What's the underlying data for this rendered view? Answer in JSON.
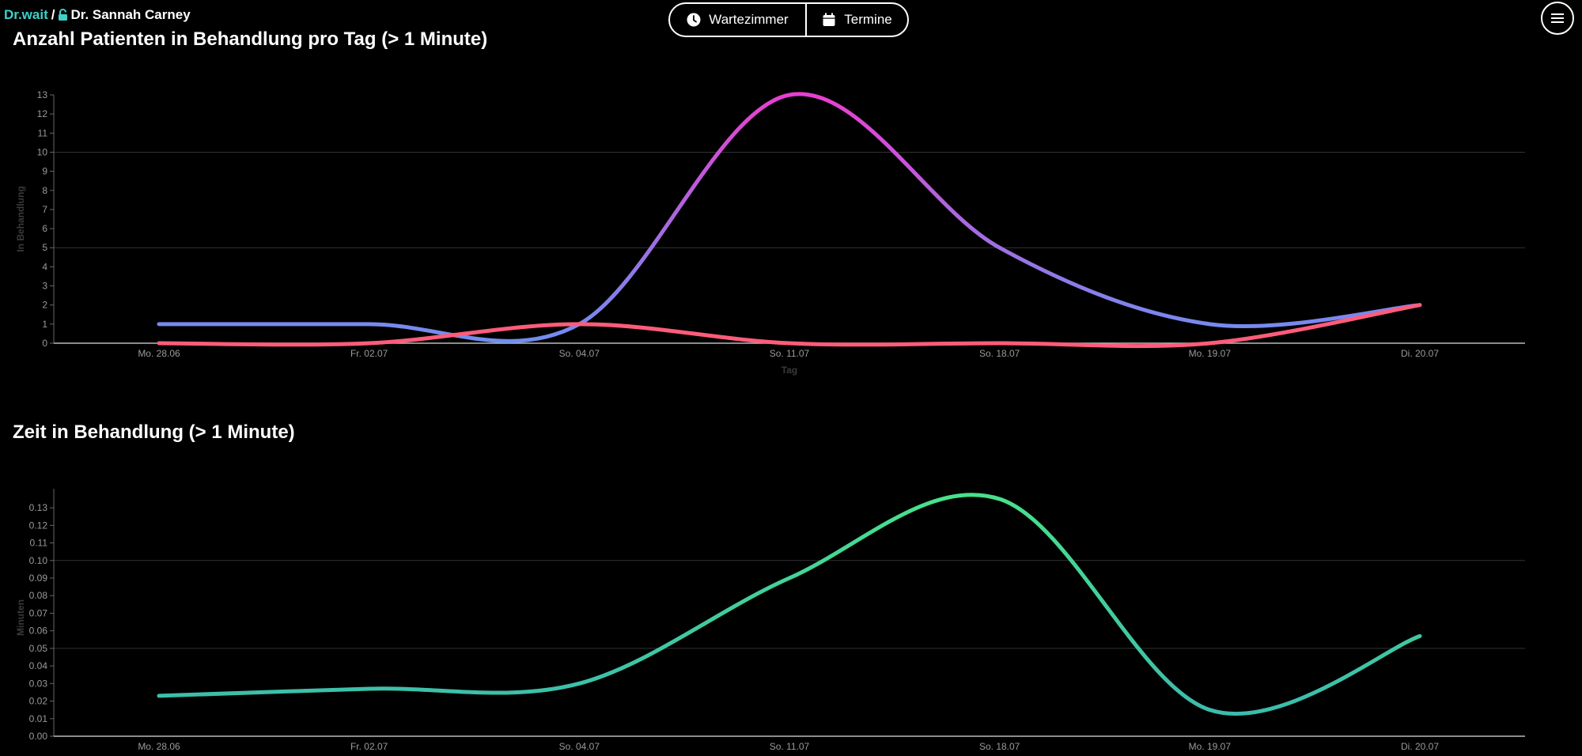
{
  "header": {
    "brand": "Dr.wait",
    "separator": "/",
    "user": "Dr. Sannah Carney",
    "lock_icon": "lock-icon",
    "nav": [
      {
        "label": "Wartezimmer",
        "icon": "clock-icon"
      },
      {
        "label": "Termine",
        "icon": "calendar-icon"
      }
    ],
    "menu_icon": "hamburger-menu-icon"
  },
  "colors": {
    "brand": "#3fd0c9",
    "chart1_line_low": "#6f8ff0",
    "chart1_line_high": "#e83fd0",
    "chart1_red": "#ff5c7a",
    "chart2_low": "#3ab8b0",
    "chart2_high": "#48e08c"
  },
  "charts": [
    {
      "title": "Anzahl Patienten in Behandlung pro Tag (> 1 Minute)",
      "chart_data": {
        "type": "line",
        "categories": [
          "Mo. 28.06",
          "Fr. 02.07",
          "So. 04.07",
          "So. 11.07",
          "So. 18.07",
          "Mo. 19.07",
          "Di. 20.07"
        ],
        "series": [
          {
            "values": [
              1,
              1,
              1,
              13,
              5,
              1,
              2
            ]
          },
          {
            "values": [
              0,
              0,
              1,
              0,
              0,
              0,
              2
            ]
          }
        ],
        "xlabel": "Tag",
        "ylabel": "In Behandlung",
        "ylim": [
          0,
          13
        ],
        "yticks": [
          "0",
          "1",
          "2",
          "3",
          "4",
          "5",
          "6",
          "7",
          "8",
          "9",
          "10",
          "11",
          "12",
          "13"
        ],
        "grid_y": [
          5,
          10
        ]
      }
    },
    {
      "title": "Zeit in Behandlung (> 1 Minute)",
      "chart_data": {
        "type": "line",
        "categories": [
          "Mo. 28.06",
          "Fr. 02.07",
          "So. 04.07",
          "So. 11.07",
          "So. 18.07",
          "Mo. 19.07",
          "Di. 20.07"
        ],
        "series": [
          {
            "values": [
              0.023,
              0.027,
              0.03,
              0.09,
              0.135,
              0.015,
              0.057
            ]
          }
        ],
        "xlabel": "",
        "ylabel": "Minuten",
        "ylim": [
          0,
          0.135
        ],
        "yticks": [
          "0.00",
          "0.01",
          "0.02",
          "0.03",
          "0.04",
          "0.05",
          "0.06",
          "0.07",
          "0.08",
          "0.09",
          "0.10",
          "0.11",
          "0.12",
          "0.13"
        ],
        "grid_y": [
          0.05,
          0.1
        ]
      }
    }
  ]
}
